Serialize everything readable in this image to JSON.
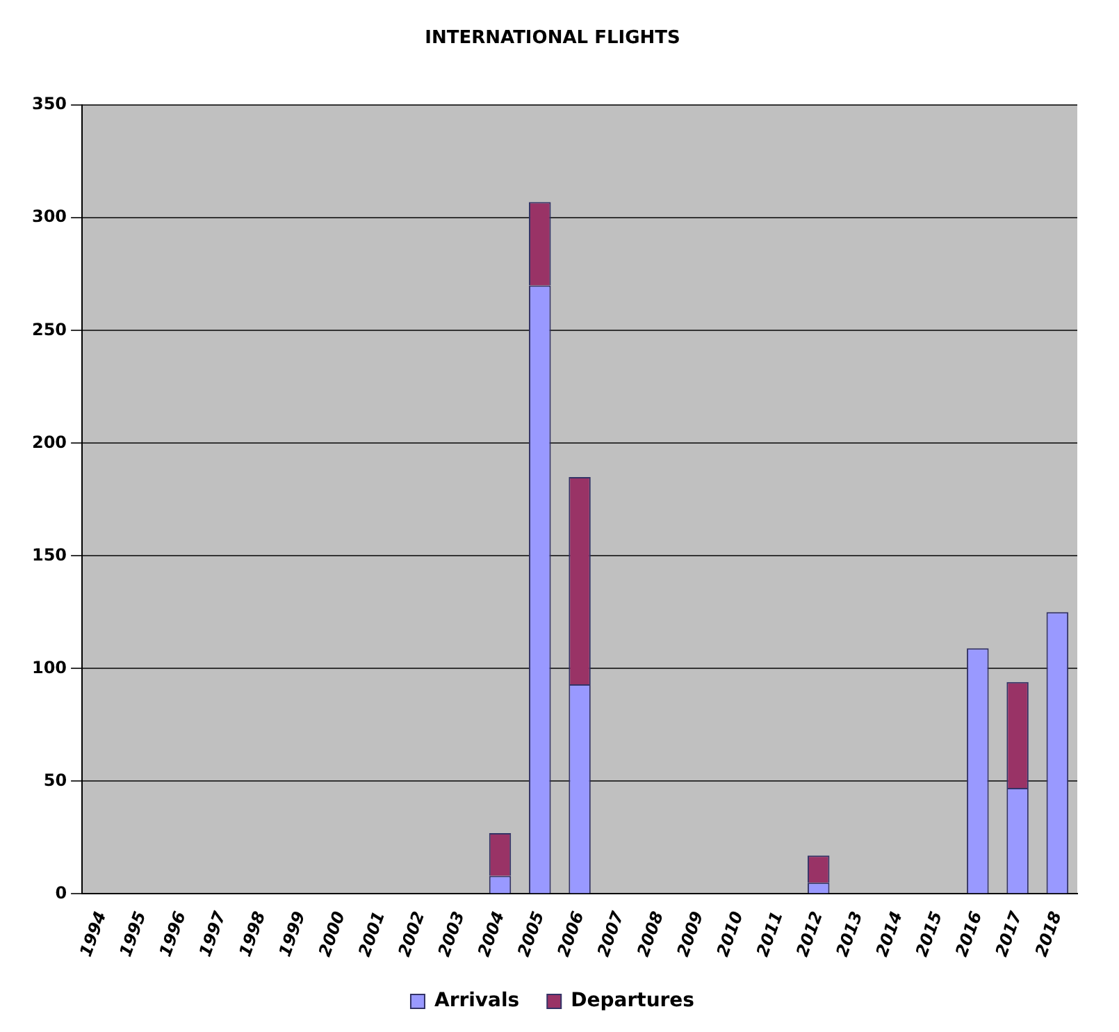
{
  "chart_data": {
    "type": "bar",
    "title": "INTERNATIONAL FLIGHTS",
    "categories": [
      "1994",
      "1995",
      "1996",
      "1997",
      "1998",
      "1999",
      "2000",
      "2001",
      "2002",
      "2003",
      "2004",
      "2005",
      "2006",
      "2007",
      "2008",
      "2009",
      "2010",
      "2011",
      "2012",
      "2013",
      "2014",
      "2015",
      "2016",
      "2017",
      "2018"
    ],
    "series": [
      {
        "name": "Arrivals",
        "color": "#9999ff",
        "values": [
          0,
          0,
          0,
          0,
          0,
          0,
          0,
          0,
          0,
          0,
          8,
          270,
          93,
          0,
          0,
          0,
          0,
          0,
          5,
          0,
          0,
          0,
          109,
          47,
          125
        ]
      },
      {
        "name": "Departures",
        "color": "#993366",
        "values": [
          0,
          0,
          0,
          0,
          0,
          0,
          0,
          0,
          0,
          0,
          19,
          37,
          92,
          0,
          0,
          0,
          0,
          0,
          12,
          0,
          0,
          0,
          0,
          47,
          0
        ]
      }
    ],
    "stacked": true,
    "ylim": [
      0,
      350
    ],
    "yticks": [
      0,
      50,
      100,
      150,
      200,
      250,
      300,
      350
    ],
    "grid": "y",
    "legend": "bottom"
  }
}
